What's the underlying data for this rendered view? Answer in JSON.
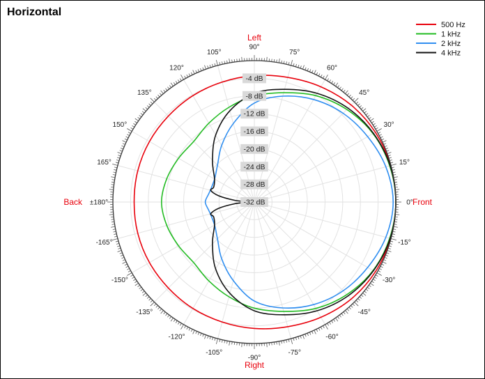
{
  "chart_data": {
    "type": "polar-line",
    "title": "Horizontal",
    "units": "dB",
    "radial_range_db": [
      -32,
      0
    ],
    "radial_ticks": [
      {
        "value": -4,
        "label": "-4 dB"
      },
      {
        "value": -8,
        "label": "-8 dB"
      },
      {
        "value": -12,
        "label": "-12 dB"
      },
      {
        "value": -16,
        "label": "-16 dB"
      },
      {
        "value": -20,
        "label": "-20 dB"
      },
      {
        "value": -24,
        "label": "-24 dB"
      },
      {
        "value": -28,
        "label": "-28 dB"
      },
      {
        "value": -32,
        "label": "-32 dB"
      }
    ],
    "angle_ticks": [
      {
        "angle": 0,
        "label": "0°"
      },
      {
        "angle": 15,
        "label": "15°"
      },
      {
        "angle": 30,
        "label": "30°"
      },
      {
        "angle": 45,
        "label": "45°"
      },
      {
        "angle": 60,
        "label": "60°"
      },
      {
        "angle": 75,
        "label": "75°"
      },
      {
        "angle": 90,
        "label": "90°"
      },
      {
        "angle": 105,
        "label": "105°"
      },
      {
        "angle": 120,
        "label": "120°"
      },
      {
        "angle": 135,
        "label": "135°"
      },
      {
        "angle": 150,
        "label": "150°"
      },
      {
        "angle": 165,
        "label": "165°"
      },
      {
        "angle": 180,
        "label": "±180°"
      },
      {
        "angle": -165,
        "label": "-165°"
      },
      {
        "angle": -150,
        "label": "-150°"
      },
      {
        "angle": -135,
        "label": "-135°"
      },
      {
        "angle": -120,
        "label": "-120°"
      },
      {
        "angle": -105,
        "label": "-105°"
      },
      {
        "angle": -90,
        "label": "-90°"
      },
      {
        "angle": -75,
        "label": "-75°"
      },
      {
        "angle": -60,
        "label": "-60°"
      },
      {
        "angle": -45,
        "label": "-45°"
      },
      {
        "angle": -30,
        "label": "-30°"
      },
      {
        "angle": -15,
        "label": "-15°"
      }
    ],
    "direction_labels": {
      "left": "Left",
      "right": "Right",
      "back": "Back",
      "front": "Front"
    },
    "direction_color": "#e8000b",
    "legend_position": "top-right",
    "series": [
      {
        "name": "500 Hz",
        "color": "#e8000b",
        "angles": [
          0,
          15,
          30,
          45,
          60,
          75,
          90,
          105,
          120,
          135,
          150,
          165,
          180
        ],
        "values_db": [
          0.0,
          -0.1,
          -0.4,
          -1.0,
          -1.9,
          -2.8,
          -3.4,
          -3.9,
          -4.2,
          -4.5,
          -4.6,
          -4.7,
          -4.8
        ]
      },
      {
        "name": "1 kHz",
        "color": "#22bb22",
        "angles": [
          0,
          15,
          30,
          45,
          60,
          75,
          90,
          105,
          120,
          135,
          150,
          165,
          180
        ],
        "values_db": [
          0.0,
          -0.3,
          -1.0,
          -2.4,
          -4.2,
          -6.4,
          -8.0,
          -9.8,
          -11.4,
          -12.6,
          -12.2,
          -11.5,
          -11.0
        ]
      },
      {
        "name": "2 kHz",
        "color": "#2f8ef0",
        "angles": [
          0,
          15,
          30,
          45,
          60,
          75,
          90,
          105,
          120,
          135,
          150,
          165,
          170,
          180
        ],
        "values_db": [
          -0.6,
          -1.2,
          -2.4,
          -3.6,
          -5.2,
          -7.2,
          -9.6,
          -13.6,
          -17.2,
          -20.2,
          -21.6,
          -21.7,
          -21.5,
          -20.9
        ]
      },
      {
        "name": "4 kHz",
        "color": "#111111",
        "angles": [
          0,
          15,
          30,
          45,
          60,
          75,
          90,
          105,
          120,
          135,
          150,
          160,
          165,
          170,
          175,
          180
        ],
        "values_db": [
          0.0,
          -0.2,
          -0.9,
          -2.0,
          -3.6,
          -5.6,
          -7.4,
          -10.6,
          -14.5,
          -18.6,
          -21.6,
          -22.2,
          -21.8,
          -23.8,
          -27.5,
          -30.5
        ]
      }
    ]
  }
}
